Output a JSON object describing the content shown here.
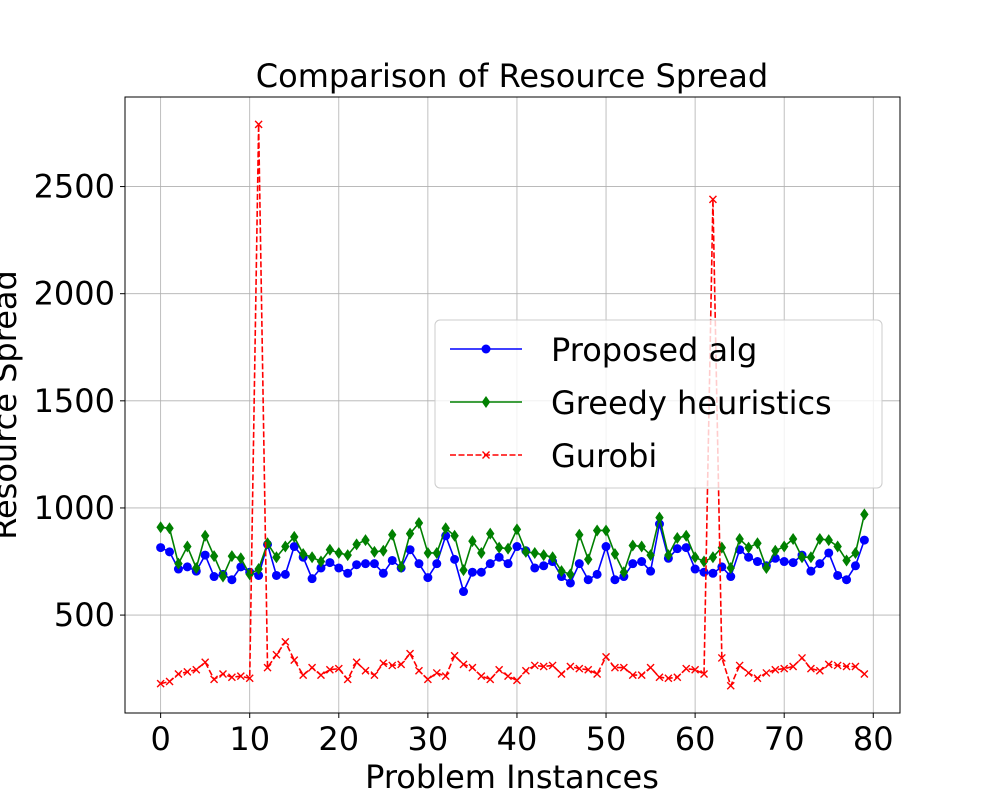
{
  "chart_data": {
    "type": "line",
    "title": "Comparison of Resource Spread",
    "xlabel": "Problem Instances",
    "ylabel": "Resource Spread",
    "xlim": [
      -4,
      83
    ],
    "ylim": [
      43,
      2918
    ],
    "xticks": [
      0,
      10,
      20,
      30,
      40,
      50,
      60,
      70,
      80
    ],
    "yticks": [
      500,
      1000,
      1500,
      2000,
      2500
    ],
    "grid": true,
    "legend_position": "center-right",
    "x": [
      0,
      1,
      2,
      3,
      4,
      5,
      6,
      7,
      8,
      9,
      10,
      11,
      12,
      13,
      14,
      15,
      16,
      17,
      18,
      19,
      20,
      21,
      22,
      23,
      24,
      25,
      26,
      27,
      28,
      29,
      30,
      31,
      32,
      33,
      34,
      35,
      36,
      37,
      38,
      39,
      40,
      41,
      42,
      43,
      44,
      45,
      46,
      47,
      48,
      49,
      50,
      51,
      52,
      53,
      54,
      55,
      56,
      57,
      58,
      59,
      60,
      61,
      62,
      63,
      64,
      65,
      66,
      67,
      68,
      69,
      70,
      71,
      72,
      73,
      74,
      75,
      76,
      77,
      78,
      79
    ],
    "series": [
      {
        "name": "Proposed alg",
        "color": "#0000ff",
        "linestyle": "solid",
        "marker": "circle",
        "values": [
          815,
          795,
          715,
          725,
          705,
          780,
          680,
          690,
          665,
          725,
          700,
          685,
          830,
          685,
          690,
          820,
          770,
          670,
          720,
          745,
          720,
          695,
          735,
          740,
          740,
          695,
          755,
          720,
          805,
          740,
          675,
          740,
          870,
          760,
          610,
          700,
          700,
          740,
          770,
          740,
          820,
          800,
          720,
          730,
          750,
          680,
          650,
          740,
          665,
          690,
          820,
          665,
          680,
          740,
          750,
          705,
          925,
          765,
          810,
          815,
          715,
          700,
          695,
          725,
          680,
          805,
          770,
          750,
          730,
          765,
          750,
          745,
          780,
          705,
          740,
          790,
          685,
          665,
          730,
          850
        ]
      },
      {
        "name": "Greedy heuristics",
        "color": "#008000",
        "linestyle": "solid",
        "marker": "diamond",
        "values": [
          910,
          905,
          740,
          820,
          720,
          870,
          775,
          680,
          775,
          765,
          690,
          715,
          835,
          770,
          820,
          865,
          785,
          770,
          750,
          805,
          790,
          780,
          830,
          850,
          795,
          800,
          875,
          725,
          880,
          930,
          790,
          790,
          905,
          870,
          710,
          845,
          790,
          880,
          815,
          810,
          900,
          795,
          790,
          780,
          770,
          705,
          690,
          875,
          760,
          895,
          895,
          785,
          700,
          825,
          820,
          780,
          955,
          780,
          860,
          870,
          770,
          750,
          770,
          815,
          720,
          855,
          815,
          835,
          720,
          800,
          820,
          855,
          770,
          770,
          855,
          850,
          820,
          755,
          790,
          970
        ]
      },
      {
        "name": "Gurobi",
        "color": "#ff0000",
        "linestyle": "dashed",
        "marker": "x",
        "values": [
          180,
          190,
          225,
          235,
          245,
          280,
          200,
          225,
          210,
          215,
          205,
          2790,
          255,
          315,
          375,
          290,
          220,
          255,
          220,
          245,
          250,
          200,
          280,
          240,
          220,
          275,
          265,
          270,
          320,
          240,
          200,
          230,
          215,
          310,
          270,
          255,
          215,
          200,
          245,
          215,
          195,
          240,
          265,
          260,
          265,
          225,
          260,
          250,
          245,
          225,
          305,
          255,
          255,
          220,
          220,
          255,
          210,
          205,
          210,
          250,
          245,
          225,
          2440,
          300,
          170,
          265,
          230,
          205,
          230,
          245,
          250,
          260,
          300,
          250,
          240,
          270,
          265,
          260,
          260,
          225
        ]
      }
    ]
  }
}
